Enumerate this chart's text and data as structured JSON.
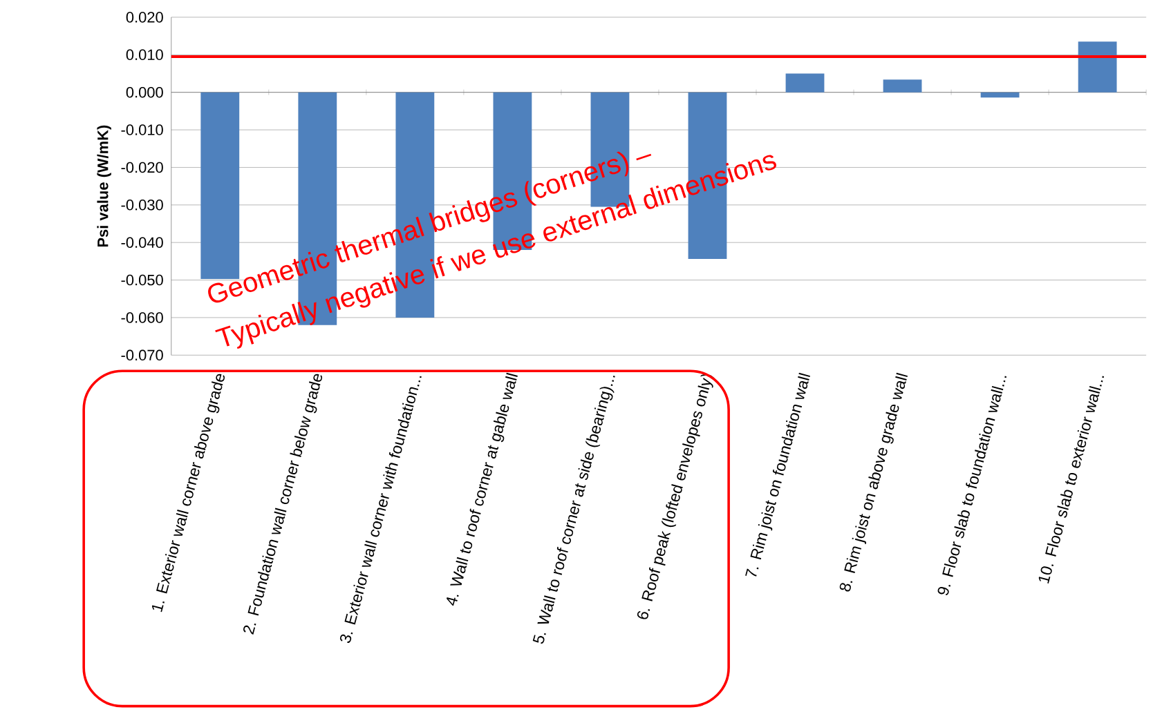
{
  "chart_data": {
    "type": "bar",
    "ylabel": "**Psi value (W/mK)**",
    "categories": [
      "1. Exterior wall corner above grade",
      "2. Foundation wall corner below grade",
      "3. Exterior wall corner with foundation...",
      "4. Wall to roof corner at gable wall",
      "5. Wall to roof corner at side (bearing)...",
      "6. Roof peak (lofted envelopes only)",
      "7. Rim joist on foundation wall",
      "8. Rim joist on above grade wall",
      "9. Floor slab to foundation wall...",
      "10. Floor slab to exterior wall..."
    ],
    "values": [
      -0.0497,
      -0.062,
      -0.06,
      -0.042,
      -0.0305,
      -0.0444,
      0.005,
      0.0034,
      -0.0014,
      0.0135
    ],
    "color": "#4f81bd",
    "ylim": [
      -0.07,
      0.02
    ],
    "yticks": [
      {
        "value": -0.07,
        "label": "-0.070"
      },
      {
        "value": -0.06,
        "label": "-0.060"
      },
      {
        "value": -0.05,
        "label": "-0.050"
      },
      {
        "value": -0.04,
        "label": "-0.040"
      },
      {
        "value": -0.03,
        "label": "-0.030"
      },
      {
        "value": -0.02,
        "label": "-0.020"
      },
      {
        "value": -0.01,
        "label": "-0.010"
      },
      {
        "value": 0,
        "label": "0.000"
      },
      {
        "value": 0.01,
        "label": "0.010"
      },
      {
        "value": 0.02,
        "label": "0.020"
      }
    ],
    "grid": "y",
    "ref_lines": [
      {
        "axis": "y",
        "value": 0.0095,
        "color": "#ff0000"
      }
    ],
    "annotations": [
      "Geometric thermal bridges (corners) –",
      "Typically negative if we use external dimensions"
    ]
  }
}
